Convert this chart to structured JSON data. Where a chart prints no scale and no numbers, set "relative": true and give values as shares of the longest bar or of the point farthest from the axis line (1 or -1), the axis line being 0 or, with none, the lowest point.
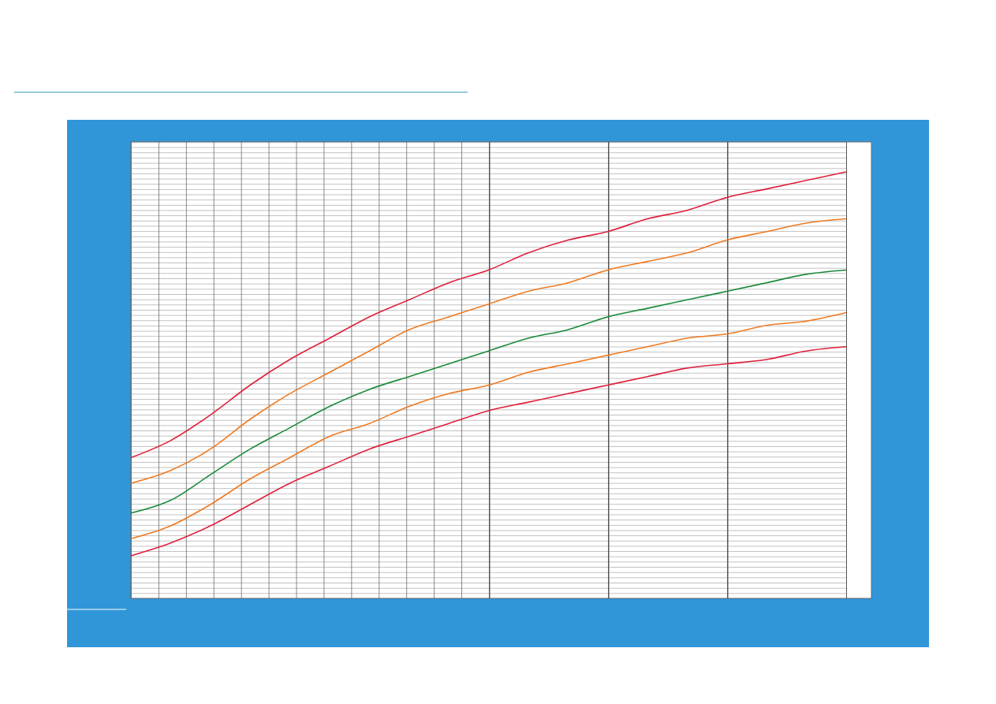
{
  "chart_data": {
    "type": "line",
    "relative": true,
    "marker": "none",
    "line_style": "solid",
    "categories": [
      null,
      null,
      null,
      null,
      null,
      null,
      null,
      null,
      null,
      null,
      null,
      null,
      null,
      null,
      null,
      null,
      null,
      null,
      null
    ],
    "series": [
      {
        "color": "#e0203c",
        "values": [
          0.33,
          0.37,
          0.43,
          0.5,
          0.56,
          0.61,
          0.66,
          0.7,
          0.74,
          0.77,
          0.81,
          0.84,
          0.86,
          0.89,
          0.91,
          0.94,
          0.96,
          0.98,
          1
        ]
      },
      {
        "color": "#f07a20",
        "values": [
          0.27,
          0.3,
          0.35,
          0.42,
          0.48,
          0.53,
          0.58,
          0.63,
          0.66,
          0.69,
          0.72,
          0.74,
          0.77,
          0.79,
          0.81,
          0.84,
          0.86,
          0.88,
          0.89
        ]
      },
      {
        "color": "#1a8a3a",
        "values": [
          0.2,
          0.23,
          0.29,
          0.35,
          0.4,
          0.45,
          0.49,
          0.52,
          0.55,
          0.58,
          0.61,
          0.63,
          0.66,
          0.68,
          0.7,
          0.72,
          0.74,
          0.76,
          0.77
        ]
      },
      {
        "color": "#f07a20",
        "values": [
          0.14,
          0.17,
          0.22,
          0.28,
          0.33,
          0.38,
          0.41,
          0.45,
          0.48,
          0.5,
          0.53,
          0.55,
          0.57,
          0.59,
          0.61,
          0.62,
          0.64,
          0.65,
          0.67
        ]
      },
      {
        "color": "#e0203c",
        "values": [
          0.1,
          0.13,
          0.17,
          0.22,
          0.27,
          0.31,
          0.35,
          0.38,
          0.41,
          0.44,
          0.46,
          0.48,
          0.5,
          0.52,
          0.54,
          0.55,
          0.56,
          0.58,
          0.59
        ]
      }
    ]
  }
}
